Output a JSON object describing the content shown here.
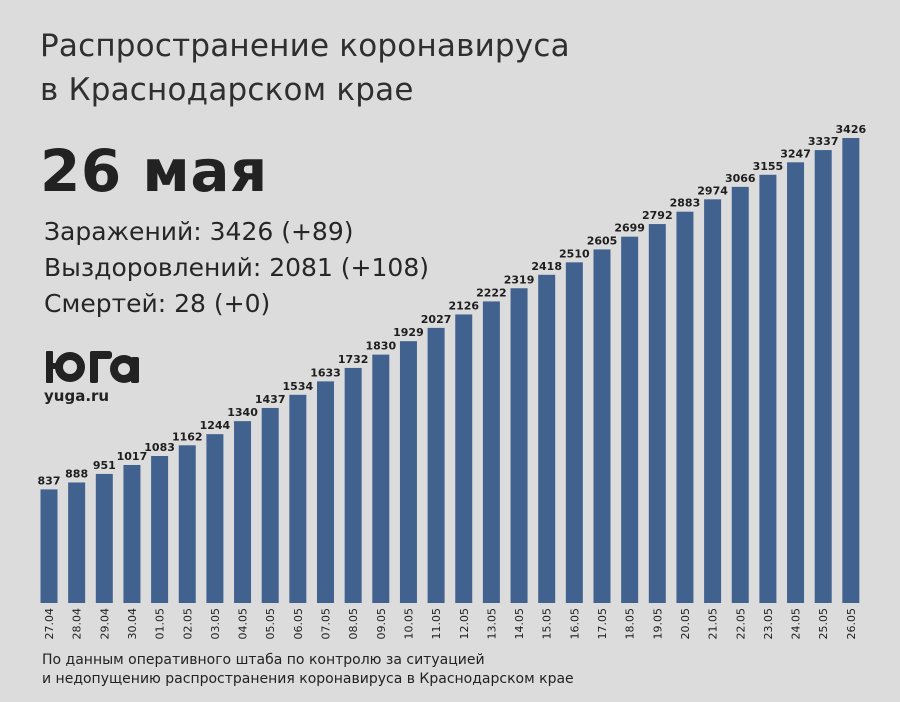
{
  "header": {
    "title_line1": "Распространение коронавируса",
    "title_line2": "в Краснодарском крае",
    "date": "26 мая"
  },
  "stats": {
    "infected": "Заражений: 3426 (+89)",
    "recovered": "Выздоровлений: 2081 (+108)",
    "deaths": "Смертей: 28 (+0)"
  },
  "brand": {
    "logo_text": "юга",
    "url": "yuga.ru"
  },
  "footnote": {
    "line1": "По данным оперативного штаба по контролю за ситуацией",
    "line2": "и недопущению распространения коронавируса в Краснодарском крае"
  },
  "colors": {
    "background": "#dcdcdc",
    "bar": "#41628f",
    "text": "#222222"
  },
  "chart_data": {
    "type": "bar",
    "title": "",
    "xlabel": "",
    "ylabel": "",
    "categories": [
      "27.04",
      "28.04",
      "29.04",
      "30.04",
      "01.05",
      "02.05",
      "03.05",
      "04.05",
      "05.05",
      "06.05",
      "07.05",
      "08.05",
      "09.05",
      "10.05",
      "11.05",
      "12.05",
      "13.05",
      "14.05",
      "15.05",
      "16.05",
      "17.05",
      "18.05",
      "19.05",
      "20.05",
      "21.05",
      "22.05",
      "23.05",
      "24.05",
      "25.05",
      "26.05"
    ],
    "values": [
      837,
      888,
      951,
      1017,
      1083,
      1162,
      1244,
      1340,
      1437,
      1534,
      1633,
      1732,
      1830,
      1929,
      2027,
      2126,
      2222,
      2319,
      2418,
      2510,
      2605,
      2699,
      2792,
      2883,
      2974,
      3066,
      3155,
      3247,
      3337,
      3426
    ],
    "ylim": [
      0,
      3426
    ],
    "data_labels": true,
    "tick_rotation": "vertical",
    "grid": false,
    "legend": "none"
  }
}
